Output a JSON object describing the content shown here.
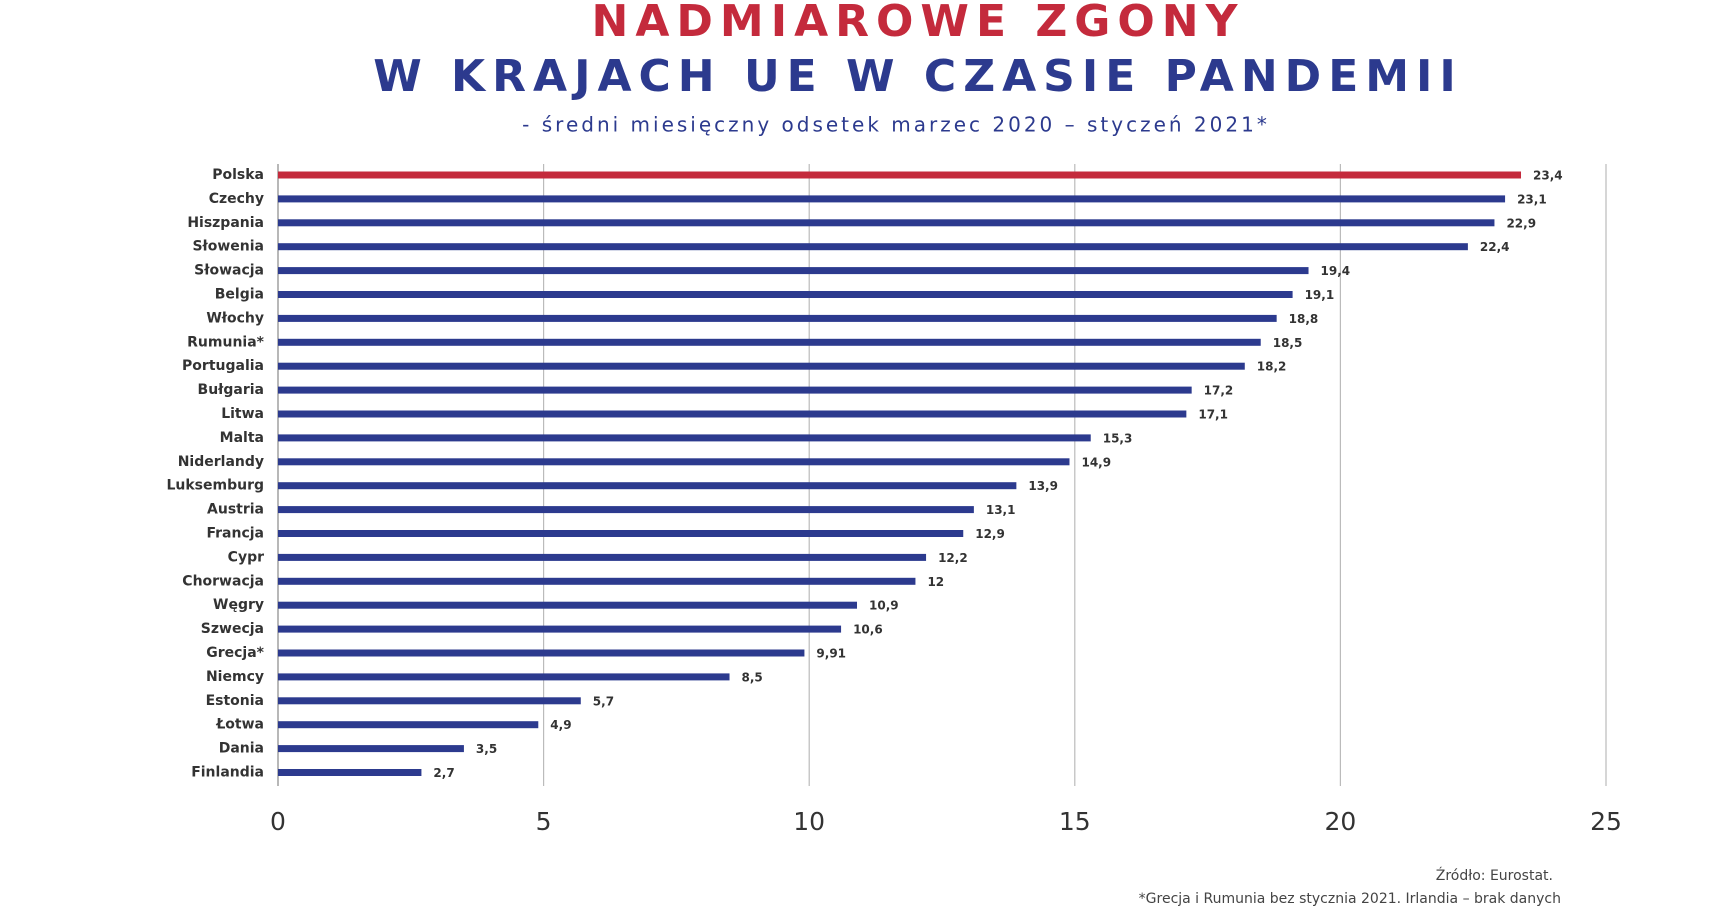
{
  "chart_data": {
    "type": "hbar",
    "title": "NADMIAROWE ZGONY",
    "subtitle": "W KRAJACH UE W CZASIE PANDEMII",
    "caption": "- średni miesięczny odsetek marzec 2020 – styczeń 2021*",
    "source": "Źródło: Eurostat.",
    "note": "*Grecja i Rumunia bez stycznia 2021. Irlandia – brak danych",
    "categories": [
      "Polska",
      "Czechy",
      "Hiszpania",
      "Słowenia",
      "Słowacja",
      "Belgia",
      "Włochy",
      "Rumunia*",
      "Portugalia",
      "Bułgaria",
      "Litwa",
      "Malta",
      "Niderlandy",
      "Luksemburg",
      "Austria",
      "Francja",
      "Cypr",
      "Chorwacja",
      "Węgry",
      "Szwecja",
      "Grecja*",
      "Niemcy",
      "Estonia",
      "Łotwa",
      "Dania",
      "Finlandia"
    ],
    "values": [
      23.4,
      23.1,
      22.9,
      22.4,
      19.4,
      19.1,
      18.8,
      18.5,
      18.2,
      17.2,
      17.1,
      15.3,
      14.9,
      13.9,
      13.1,
      12.9,
      12.2,
      12,
      10.9,
      10.6,
      9.91,
      8.5,
      5.7,
      4.9,
      3.5,
      2.7
    ],
    "value_labels": [
      "23,4",
      "23,1",
      "22,9",
      "22,4",
      "19,4",
      "19,1",
      "18,8",
      "18,5",
      "18,2",
      "17,2",
      "17,1",
      "15,3",
      "14,9",
      "13,9",
      "13,1",
      "12,9",
      "12,2",
      "12",
      "10,9",
      "10,6",
      "9,91",
      "8,5",
      "5,7",
      "4,9",
      "3,5",
      "2,7"
    ],
    "colors": [
      "#c42a3c",
      "#2c3a8e",
      "#2c3a8e",
      "#2c3a8e",
      "#2c3a8e",
      "#2c3a8e",
      "#2c3a8e",
      "#2c3a8e",
      "#2c3a8e",
      "#2c3a8e",
      "#2c3a8e",
      "#2c3a8e",
      "#2c3a8e",
      "#2c3a8e",
      "#2c3a8e",
      "#2c3a8e",
      "#2c3a8e",
      "#2c3a8e",
      "#2c3a8e",
      "#2c3a8e",
      "#2c3a8e",
      "#2c3a8e",
      "#2c3a8e",
      "#2c3a8e",
      "#2c3a8e",
      "#2c3a8e"
    ],
    "xlim": [
      0,
      25
    ],
    "xticks": [
      0,
      5,
      10,
      15,
      20,
      25
    ],
    "grid": true
  }
}
